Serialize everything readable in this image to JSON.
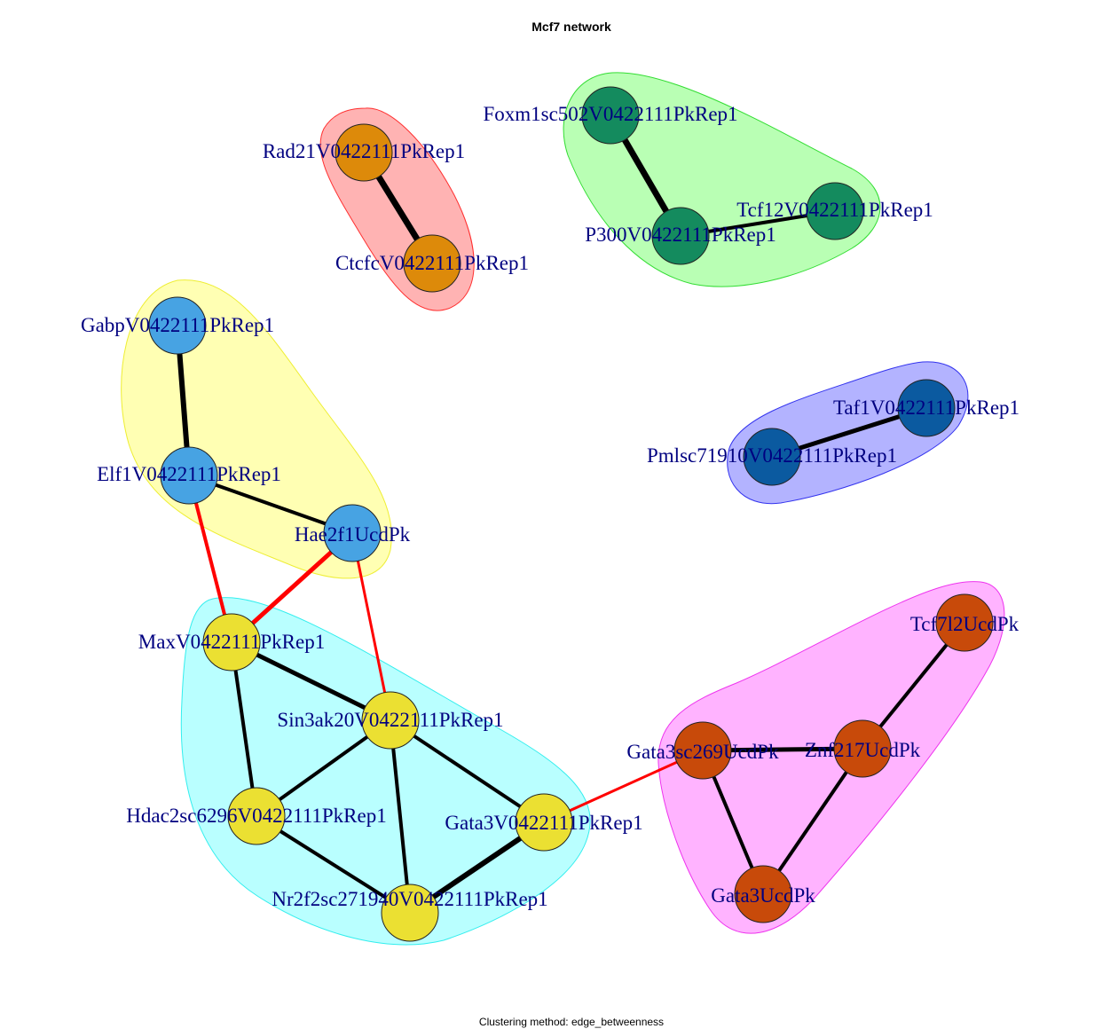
{
  "title": "Mcf7 network",
  "subtitle": "Clustering method: edge_betweenness",
  "colors": {
    "label": "#000080",
    "edge_within": "#000000",
    "edge_between": "#ff0000"
  },
  "clusters": [
    {
      "id": "red",
      "fill": "#ffb3b3",
      "stroke": "#ff3030",
      "members": [
        "Rad21V0422111PkRep1",
        "CtcfcV0422111PkRep1"
      ]
    },
    {
      "id": "green",
      "fill": "#b9ffb4",
      "stroke": "#33dd33",
      "members": [
        "Foxm1sc502V0422111PkRep1",
        "P300V0422111PkRep1",
        "Tcf12V0422111PkRep1"
      ]
    },
    {
      "id": "yellow",
      "fill": "#ffffb3",
      "stroke": "#eeee33",
      "members": [
        "GabpV0422111PkRep1",
        "Elf1V0422111PkRep1",
        "Hae2f1UcdPk"
      ]
    },
    {
      "id": "blue",
      "fill": "#b3b3ff",
      "stroke": "#3333ee",
      "members": [
        "Pmlsc71910V0422111PkRep1",
        "Taf1V0422111PkRep1"
      ]
    },
    {
      "id": "cyan",
      "fill": "#b9ffff",
      "stroke": "#33eeee",
      "members": [
        "MaxV0422111PkRep1",
        "Sin3ak20V0422111PkRep1",
        "Hdac2sc6296V0422111PkRep1",
        "Gata3V0422111PkRep1",
        "Nr2f2sc271940V0422111PkRep1"
      ]
    },
    {
      "id": "magenta",
      "fill": "#ffb3ff",
      "stroke": "#ee33ee",
      "members": [
        "Tcf7l2UcdPk",
        "Gata3sc269UcdPk",
        "Znf217UcdPk",
        "Gata3UcdPk"
      ]
    }
  ],
  "nodes": [
    {
      "id": "Rad21V0422111PkRep1",
      "label": "Rad21V0422111PkRep1",
      "color": "#dd8a0a"
    },
    {
      "id": "CtcfcV0422111PkRep1",
      "label": "CtcfcV0422111PkRep1",
      "color": "#dd8a0a"
    },
    {
      "id": "Foxm1sc502V0422111PkRep1",
      "label": "Foxm1sc502V0422111PkRep1",
      "color": "#148b5e"
    },
    {
      "id": "P300V0422111PkRep1",
      "label": "P300V0422111PkRep1",
      "color": "#148b5e"
    },
    {
      "id": "Tcf12V0422111PkRep1",
      "label": "Tcf12V0422111PkRep1",
      "color": "#148b5e"
    },
    {
      "id": "GabpV0422111PkRep1",
      "label": "GabpV0422111PkRep1",
      "color": "#47a3e3"
    },
    {
      "id": "Elf1V0422111PkRep1",
      "label": "Elf1V0422111PkRep1",
      "color": "#47a3e3"
    },
    {
      "id": "Hae2f1UcdPk",
      "label": "Hae2f1UcdPk",
      "color": "#47a3e3"
    },
    {
      "id": "Taf1V0422111PkRep1",
      "label": "Taf1V0422111PkRep1",
      "color": "#0b5aa0"
    },
    {
      "id": "Pmlsc71910V0422111PkRep1",
      "label": "Pmlsc71910V0422111PkRep1",
      "color": "#0b5aa0"
    },
    {
      "id": "MaxV0422111PkRep1",
      "label": "MaxV0422111PkRep1",
      "color": "#ebe032"
    },
    {
      "id": "Sin3ak20V0422111PkRep1",
      "label": "Sin3ak20V0422111PkRep1",
      "color": "#ebe032"
    },
    {
      "id": "Hdac2sc6296V0422111PkRep1",
      "label": "Hdac2sc6296V0422111PkRep1",
      "color": "#ebe032"
    },
    {
      "id": "Gata3V0422111PkRep1",
      "label": "Gata3V0422111PkRep1",
      "color": "#ebe032"
    },
    {
      "id": "Nr2f2sc271940V0422111PkRep1",
      "label": "Nr2f2sc271940V0422111PkRep1",
      "color": "#ebe032"
    },
    {
      "id": "Tcf7l2UcdPk",
      "label": "Tcf7l2UcdPk",
      "color": "#c84a0a"
    },
    {
      "id": "Gata3sc269UcdPk",
      "label": "Gata3sc269UcdPk",
      "color": "#c84a0a"
    },
    {
      "id": "Znf217UcdPk",
      "label": "Znf217UcdPk",
      "color": "#c84a0a"
    },
    {
      "id": "Gata3UcdPk",
      "label": "Gata3UcdPk",
      "color": "#c84a0a"
    }
  ],
  "edges": [
    {
      "source": "Rad21V0422111PkRep1",
      "target": "CtcfcV0422111PkRep1",
      "weight": 7,
      "between": false
    },
    {
      "source": "Foxm1sc502V0422111PkRep1",
      "target": "P300V0422111PkRep1",
      "weight": 7,
      "between": false
    },
    {
      "source": "P300V0422111PkRep1",
      "target": "Tcf12V0422111PkRep1",
      "weight": 4,
      "between": false
    },
    {
      "source": "GabpV0422111PkRep1",
      "target": "Elf1V0422111PkRep1",
      "weight": 6,
      "between": false
    },
    {
      "source": "Elf1V0422111PkRep1",
      "target": "Hae2f1UcdPk",
      "weight": 4,
      "between": false
    },
    {
      "source": "Taf1V0422111PkRep1",
      "target": "Pmlsc71910V0422111PkRep1",
      "weight": 5,
      "between": false
    },
    {
      "source": "Elf1V0422111PkRep1",
      "target": "MaxV0422111PkRep1",
      "weight": 4,
      "between": true
    },
    {
      "source": "Hae2f1UcdPk",
      "target": "MaxV0422111PkRep1",
      "weight": 5,
      "between": true
    },
    {
      "source": "Hae2f1UcdPk",
      "target": "Sin3ak20V0422111PkRep1",
      "weight": 3,
      "between": true
    },
    {
      "source": "MaxV0422111PkRep1",
      "target": "Sin3ak20V0422111PkRep1",
      "weight": 5,
      "between": false
    },
    {
      "source": "MaxV0422111PkRep1",
      "target": "Hdac2sc6296V0422111PkRep1",
      "weight": 4,
      "between": false
    },
    {
      "source": "Sin3ak20V0422111PkRep1",
      "target": "Hdac2sc6296V0422111PkRep1",
      "weight": 4,
      "between": false
    },
    {
      "source": "Sin3ak20V0422111PkRep1",
      "target": "Nr2f2sc271940V0422111PkRep1",
      "weight": 4,
      "between": false
    },
    {
      "source": "Sin3ak20V0422111PkRep1",
      "target": "Gata3V0422111PkRep1",
      "weight": 4,
      "between": false
    },
    {
      "source": "Hdac2sc6296V0422111PkRep1",
      "target": "Nr2f2sc271940V0422111PkRep1",
      "weight": 4,
      "between": false
    },
    {
      "source": "Nr2f2sc271940V0422111PkRep1",
      "target": "Gata3V0422111PkRep1",
      "weight": 6,
      "between": false
    },
    {
      "source": "Gata3V0422111PkRep1",
      "target": "Gata3sc269UcdPk",
      "weight": 3,
      "between": true
    },
    {
      "source": "Gata3sc269UcdPk",
      "target": "Znf217UcdPk",
      "weight": 5,
      "between": false
    },
    {
      "source": "Gata3sc269UcdPk",
      "target": "Gata3UcdPk",
      "weight": 4,
      "between": false
    },
    {
      "source": "Znf217UcdPk",
      "target": "Gata3UcdPk",
      "weight": 4,
      "between": false
    },
    {
      "source": "Znf217UcdPk",
      "target": "Tcf7l2UcdPk",
      "weight": 4,
      "between": false
    }
  ]
}
